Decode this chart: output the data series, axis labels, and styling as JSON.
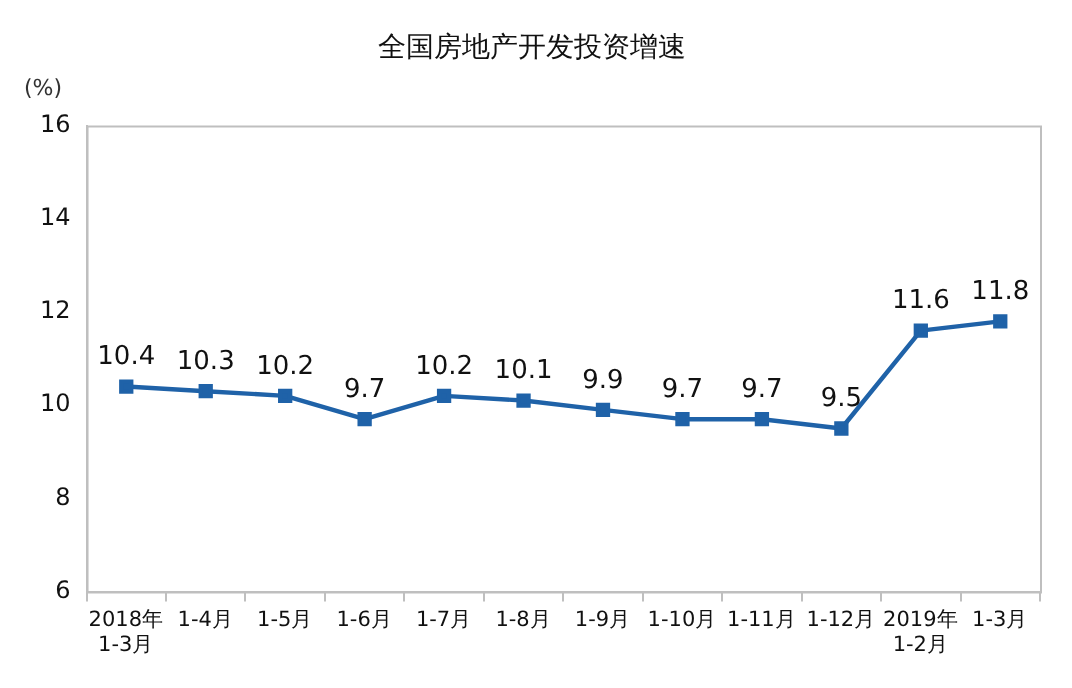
{
  "chart_data": {
    "type": "line",
    "title": "全国房地产开发投资增速",
    "ylabel": "(%)",
    "categories": [
      "2018年\n1-3月",
      "1-4月",
      "1-5月",
      "1-6月",
      "1-7月",
      "1-8月",
      "1-9月",
      "1-10月",
      "1-11月",
      "1-12月",
      "2019年\n1-2月",
      "1-3月"
    ],
    "series": [
      {
        "color": "#1f62a8",
        "values": [
          10.4,
          10.3,
          10.2,
          9.7,
          10.2,
          10.1,
          9.9,
          9.7,
          9.7,
          9.5,
          11.6,
          11.8
        ]
      }
    ],
    "ylim": [
      6,
      16
    ],
    "yticks": [
      6,
      8,
      10,
      12,
      14,
      16
    ],
    "grid": false,
    "legend": false,
    "marker": "square",
    "line_style": "solid",
    "data_labels": true
  }
}
